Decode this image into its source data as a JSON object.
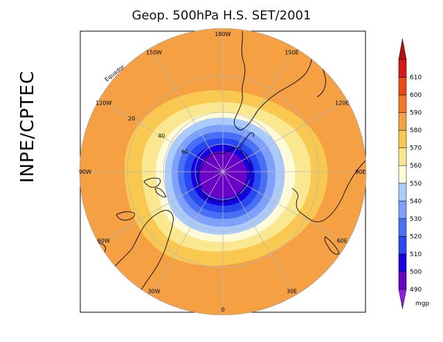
{
  "title": "Geop. 500hPa H.S. SET/2001",
  "side_label": "INPE/CPTEC",
  "map": {
    "projection": "south-polar-stereographic",
    "longitude_labels": [
      {
        "text": "90W",
        "lon": -90
      },
      {
        "text": "60W",
        "lon": -60
      },
      {
        "text": "30W",
        "lon": -30
      },
      {
        "text": "0",
        "lon": 0
      },
      {
        "text": "30E",
        "lon": 30
      },
      {
        "text": "60E",
        "lon": 60
      },
      {
        "text": "90E",
        "lon": 90
      },
      {
        "text": "120E",
        "lon": 120
      },
      {
        "text": "150E",
        "lon": 150
      },
      {
        "text": "180W",
        "lon": 180
      },
      {
        "text": "150W",
        "lon": -150
      },
      {
        "text": "120W",
        "lon": -120
      }
    ],
    "latitude_labels": [
      "20",
      "40",
      "60"
    ],
    "equator_label": "Equador",
    "units": "mgp",
    "colorbar": [
      {
        "value": "490",
        "color": "#6a00c8"
      },
      {
        "value": "500",
        "color": "#1400e0"
      },
      {
        "value": "510",
        "color": "#2848f0"
      },
      {
        "value": "520",
        "color": "#4870f5"
      },
      {
        "value": "530",
        "color": "#7ea0fa"
      },
      {
        "value": "540",
        "color": "#aacafc"
      },
      {
        "value": "550",
        "color": "#fffad8"
      },
      {
        "value": "560",
        "color": "#fae890"
      },
      {
        "value": "570",
        "color": "#f8c850"
      },
      {
        "value": "580",
        "color": "#f5a042"
      },
      {
        "value": "590",
        "color": "#f07828"
      },
      {
        "value": "600",
        "color": "#ec4a12"
      },
      {
        "value": "610",
        "color": "#d81818"
      }
    ],
    "colorbar_end_colors": {
      "low": "#8c1ee6",
      "high": "#b81010"
    }
  }
}
